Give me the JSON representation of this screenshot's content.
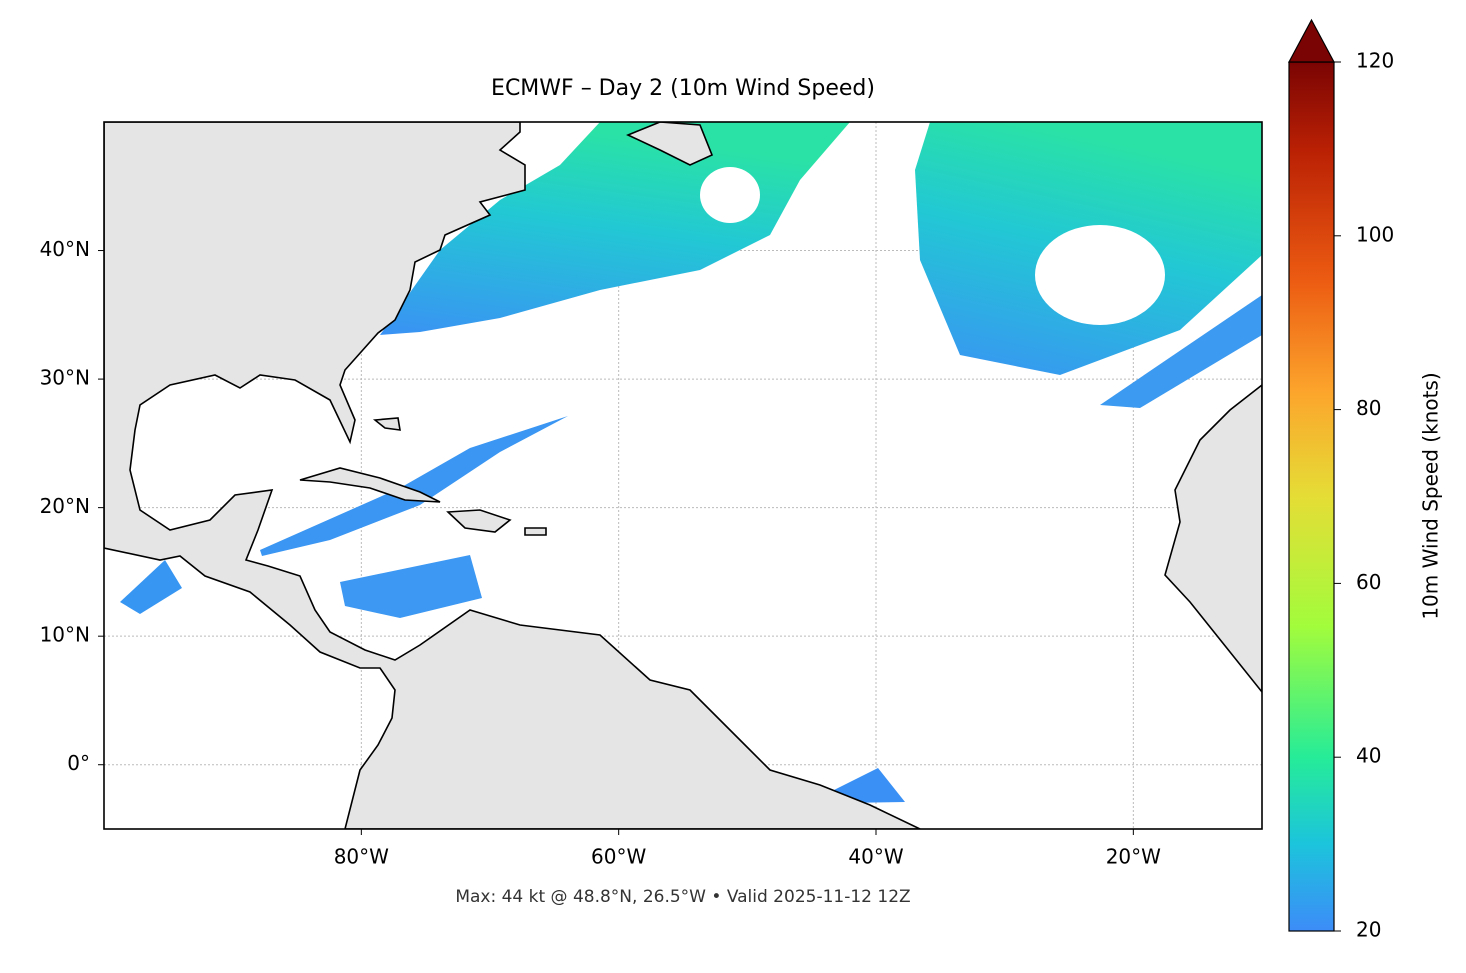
{
  "chart_data": {
    "type": "map",
    "title": "ECMWF – Day 2 (10m Wind Speed)",
    "footer": "Max: 44 kt @ 48.8°N, 26.5°W • Valid 2025-11-12 12Z",
    "xlim": [
      -100,
      -10
    ],
    "ylim": [
      -5,
      50
    ],
    "xticks": [
      {
        "value": -80,
        "label": "80°W"
      },
      {
        "value": -60,
        "label": "60°W"
      },
      {
        "value": -40,
        "label": "40°W"
      },
      {
        "value": -20,
        "label": "20°W"
      }
    ],
    "yticks": [
      {
        "value": 0,
        "label": "0°"
      },
      {
        "value": 10,
        "label": "10°N"
      },
      {
        "value": 20,
        "label": "20°N"
      },
      {
        "value": 30,
        "label": "30°N"
      },
      {
        "value": 40,
        "label": "40°N"
      }
    ],
    "grid": true,
    "colorbar": {
      "label": "10m Wind Speed (knots)",
      "lim": [
        20,
        120
      ],
      "ticks": [
        20,
        40,
        60,
        80,
        100,
        120
      ]
    }
  }
}
